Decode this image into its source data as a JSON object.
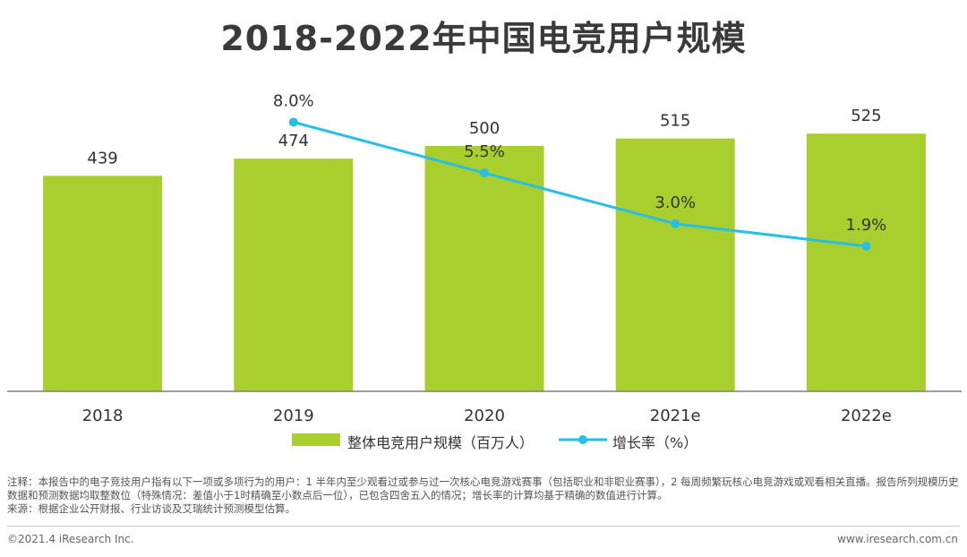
{
  "title": "2018-2022年中国电竞用户规模",
  "chart_data": {
    "type": "bar",
    "categories": [
      "2018",
      "2019",
      "2020",
      "2021e",
      "2022e"
    ],
    "series": [
      {
        "name": "整体电竞用户规模（百万人）",
        "type": "bar",
        "values": [
          439,
          474,
          500,
          515,
          525
        ],
        "labels": [
          "439",
          "474",
          "500",
          "515",
          "525"
        ]
      },
      {
        "name": "增长率（%）",
        "type": "line",
        "values": [
          null,
          8.0,
          5.5,
          3.0,
          1.9
        ],
        "labels": [
          "",
          "8.0%",
          "5.5%",
          "3.0%",
          "1.9%"
        ]
      }
    ],
    "ylim": [
      0,
      560
    ],
    "growth_ylim": [
      0,
      10
    ],
    "colors": {
      "bar": "#a9cf2f",
      "line": "#26bfe6",
      "axis": "#7f7f7f"
    }
  },
  "legend": {
    "bar_label": "整体电竞用户规模（百万人）",
    "line_label": "增长率（%）"
  },
  "notes": [
    "注释：本报告中的电子竞技用户指有以下一项或多项行为的用户：1 半年内至少观看过或参与过一次核心电竞游戏赛事（包括职业和非职业赛事），2 每周频繁玩核心电竞游戏或观看相关直播。报告所列规模历史数据和预测数据均取整数位（特殊情况：差值小于1时精确至小数点后一位），已包含四舍五入的情况；增长率的计算均基于精确的数值进行计算。",
    "来源：根据企业公开财报、行业访谈及艾瑞统计预测模型估算。"
  ],
  "footer": {
    "left": "©2021.4 iResearch Inc.",
    "right": "www.iresearch.com.cn"
  }
}
